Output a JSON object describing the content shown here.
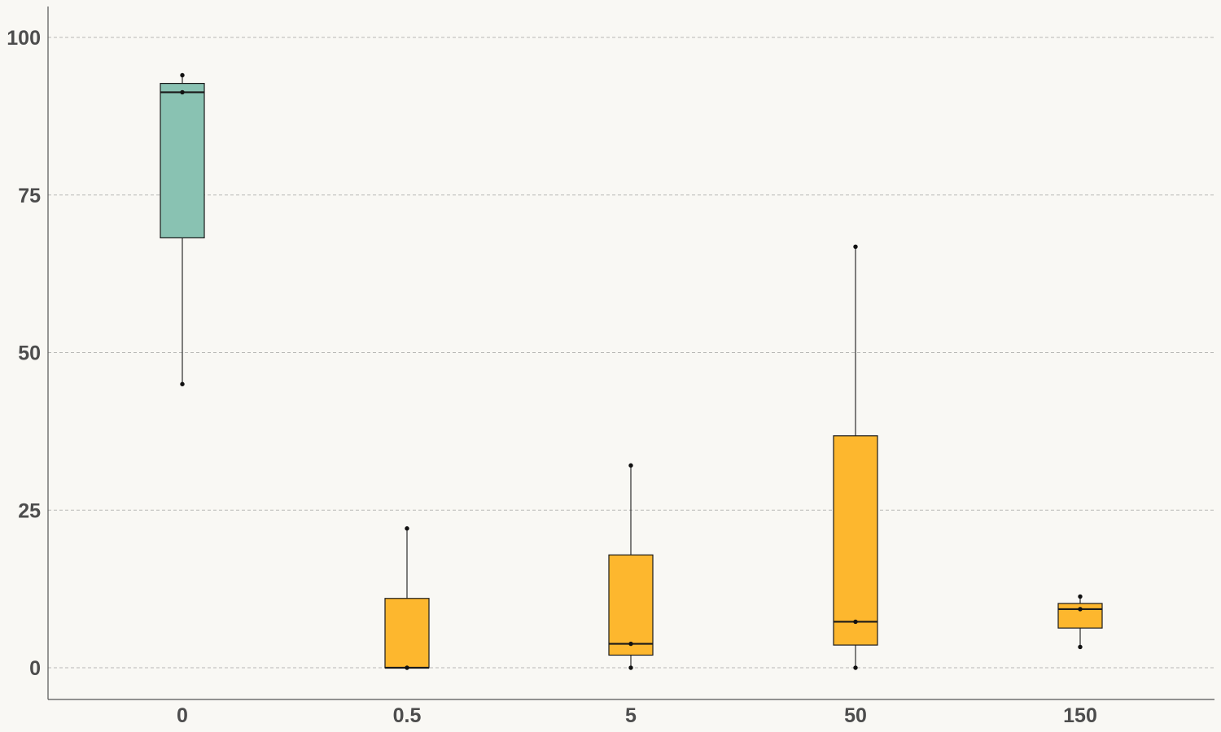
{
  "chart_data": {
    "type": "box",
    "title": "",
    "xlabel": "",
    "ylabel": "",
    "categories": [
      "0",
      "0.5",
      "5",
      "50",
      "150"
    ],
    "ylim": [
      -5,
      105
    ],
    "yticks": [
      "0",
      "25",
      "50",
      "75",
      "100"
    ],
    "grid": "horizontal dashed",
    "colors": {
      "control": "#89c2b2",
      "treatment": "#fdb72e",
      "background": "#f9f8f4"
    },
    "boxes": [
      {
        "category": "0",
        "whisker_low": 45,
        "q1": 68.2,
        "median": 91.3,
        "q3": 92.7,
        "whisker_high": 94,
        "points": [
          94,
          91.3,
          45
        ],
        "color": "#89c2b2"
      },
      {
        "category": "0.5",
        "whisker_low": 0,
        "q1": 0,
        "median": 0,
        "q3": 11,
        "whisker_high": 22.1,
        "points": [
          22.1,
          0
        ],
        "color": "#fdb72e"
      },
      {
        "category": "5",
        "whisker_low": 0,
        "q1": 2,
        "median": 3.8,
        "q3": 17.9,
        "whisker_high": 32.1,
        "points": [
          32.1,
          3.8,
          0
        ],
        "color": "#fdb72e"
      },
      {
        "category": "50",
        "whisker_low": 0,
        "q1": 3.6,
        "median": 7.3,
        "q3": 36.8,
        "whisker_high": 66.8,
        "points": [
          66.8,
          7.3,
          0
        ],
        "color": "#fdb72e"
      },
      {
        "category": "150",
        "whisker_low": 3.3,
        "q1": 6.3,
        "median": 9.3,
        "q3": 10.2,
        "whisker_high": 11.3,
        "points": [
          11.3,
          9.3,
          3.3
        ],
        "color": "#fdb72e"
      }
    ]
  }
}
